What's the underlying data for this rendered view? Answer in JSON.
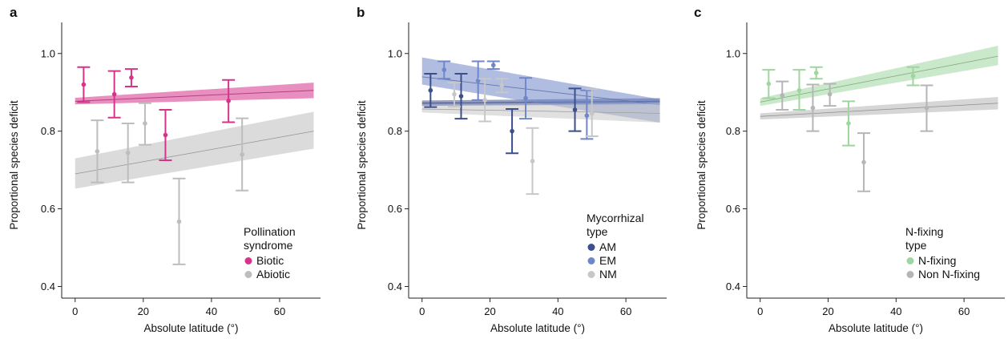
{
  "chart_data": [
    {
      "panel_label": "a",
      "type": "scatter",
      "xlabel": "Absolute latitude (°)",
      "ylabel": "Proportional species deficit",
      "xlim": [
        -3,
        72
      ],
      "ylim": [
        0.37,
        1.08
      ],
      "xticks": [
        0,
        20,
        40,
        60
      ],
      "yticks": [
        0.4,
        0.6,
        0.8,
        1.0
      ],
      "ytick_labels": [
        "0.4",
        "0.6",
        "0.8",
        "1.0"
      ],
      "xtick_labels": [
        "0",
        "20",
        "40",
        "60"
      ],
      "legend": {
        "title_lines": [
          "Pollination",
          "syndrome"
        ],
        "position": "lower-right"
      },
      "series": [
        {
          "name": "Biotic",
          "color": "#d6338a",
          "points": [
            {
              "x": 2.5,
              "y": 0.92,
              "lo": 0.875,
              "hi": 0.965
            },
            {
              "x": 11.5,
              "y": 0.895,
              "lo": 0.835,
              "hi": 0.955
            },
            {
              "x": 16.5,
              "y": 0.938,
              "lo": 0.915,
              "hi": 0.96
            },
            {
              "x": 26.5,
              "y": 0.79,
              "lo": 0.725,
              "hi": 0.855
            },
            {
              "x": 45,
              "y": 0.878,
              "lo": 0.823,
              "hi": 0.932
            }
          ],
          "trend": {
            "x": [
              0,
              70
            ],
            "y": [
              0.877,
              0.905
            ],
            "band_lo": [
              0.869,
              0.885
            ],
            "band_hi": [
              0.886,
              0.925
            ]
          }
        },
        {
          "name": "Abiotic",
          "color": "#bdbdbd",
          "points": [
            {
              "x": 6.5,
              "y": 0.748,
              "lo": 0.668,
              "hi": 0.828
            },
            {
              "x": 15.5,
              "y": 0.744,
              "lo": 0.668,
              "hi": 0.82
            },
            {
              "x": 20.5,
              "y": 0.82,
              "lo": 0.765,
              "hi": 0.872
            },
            {
              "x": 30.5,
              "y": 0.567,
              "lo": 0.457,
              "hi": 0.678
            },
            {
              "x": 49,
              "y": 0.74,
              "lo": 0.647,
              "hi": 0.833
            }
          ],
          "trend": {
            "x": [
              0,
              70
            ],
            "y": [
              0.69,
              0.8
            ],
            "band_lo": [
              0.652,
              0.755
            ],
            "band_hi": [
              0.73,
              0.85
            ]
          }
        }
      ]
    },
    {
      "panel_label": "b",
      "type": "scatter",
      "xlabel": "Absolute latitude (°)",
      "ylabel": "Proportional species deficit",
      "xlim": [
        -3,
        72
      ],
      "ylim": [
        0.37,
        1.08
      ],
      "xticks": [
        0,
        20,
        40,
        60
      ],
      "yticks": [
        0.4,
        0.6,
        0.8,
        1.0
      ],
      "ytick_labels": [
        "0.4",
        "0.6",
        "0.8",
        "1.0"
      ],
      "xtick_labels": [
        "0",
        "20",
        "40",
        "60"
      ],
      "legend": {
        "title_lines": [
          "Mycorrhizal",
          "type"
        ],
        "position": "lower-right"
      },
      "series": [
        {
          "name": "AM",
          "color": "#3b4f8f",
          "points": [
            {
              "x": 2.5,
              "y": 0.905,
              "lo": 0.862,
              "hi": 0.948
            },
            {
              "x": 11.5,
              "y": 0.89,
              "lo": 0.832,
              "hi": 0.948
            },
            {
              "x": 26.5,
              "y": 0.8,
              "lo": 0.743,
              "hi": 0.857
            },
            {
              "x": 45,
              "y": 0.855,
              "lo": 0.8,
              "hi": 0.91
            }
          ],
          "trend": {
            "x": [
              0,
              70
            ],
            "y": [
              0.872,
              0.877
            ],
            "band_lo": [
              0.865,
              0.869
            ],
            "band_hi": [
              0.879,
              0.885
            ]
          }
        },
        {
          "name": "EM",
          "color": "#6f87c9",
          "points": [
            {
              "x": 6.5,
              "y": 0.958,
              "lo": 0.935,
              "hi": 0.98
            },
            {
              "x": 16.5,
              "y": 0.93,
              "lo": 0.88,
              "hi": 0.98
            },
            {
              "x": 21,
              "y": 0.97,
              "lo": 0.96,
              "hi": 0.98
            },
            {
              "x": 30.5,
              "y": 0.885,
              "lo": 0.832,
              "hi": 0.937
            },
            {
              "x": 48.5,
              "y": 0.84,
              "lo": 0.78,
              "hi": 0.905
            }
          ],
          "trend": {
            "x": [
              0,
              70
            ],
            "y": [
              0.94,
              0.868
            ],
            "band_lo": [
              0.92,
              0.822
            ],
            "band_hi": [
              0.99,
              0.882
            ]
          }
        },
        {
          "name": "NM",
          "color": "#c7c7c7",
          "points": [
            {
              "x": 9.5,
              "y": 0.895,
              "lo": 0.863,
              "hi": 0.925
            },
            {
              "x": 18.5,
              "y": 0.88,
              "lo": 0.825,
              "hi": 0.935
            },
            {
              "x": 23.5,
              "y": 0.918,
              "lo": 0.9,
              "hi": 0.935
            },
            {
              "x": 32.5,
              "y": 0.723,
              "lo": 0.638,
              "hi": 0.808
            },
            {
              "x": 50,
              "y": 0.845,
              "lo": 0.787,
              "hi": 0.908
            }
          ],
          "trend": {
            "x": [
              0,
              70
            ],
            "y": [
              0.857,
              0.846
            ],
            "band_lo": [
              0.848,
              0.822
            ],
            "band_hi": [
              0.866,
              0.872
            ]
          }
        }
      ]
    },
    {
      "panel_label": "c",
      "type": "scatter",
      "xlabel": "Absolute latitude (°)",
      "ylabel": "Proportional species deficit",
      "xlim": [
        -3,
        72
      ],
      "ylim": [
        0.37,
        1.08
      ],
      "xticks": [
        0,
        20,
        40,
        60
      ],
      "yticks": [
        0.4,
        0.6,
        0.8,
        1.0
      ],
      "ytick_labels": [
        "0.4",
        "0.6",
        "0.8",
        "1.0"
      ],
      "xtick_labels": [
        "0",
        "20",
        "40",
        "60"
      ],
      "legend": {
        "title_lines": [
          "N-fixing",
          "type"
        ],
        "position": "lower-right"
      },
      "series": [
        {
          "name": "N-fixing",
          "color": "#9fd69f",
          "points": [
            {
              "x": 2.5,
              "y": 0.922,
              "lo": 0.885,
              "hi": 0.958
            },
            {
              "x": 11.5,
              "y": 0.905,
              "lo": 0.855,
              "hi": 0.958
            },
            {
              "x": 16.5,
              "y": 0.95,
              "lo": 0.935,
              "hi": 0.965
            },
            {
              "x": 26,
              "y": 0.82,
              "lo": 0.763,
              "hi": 0.877
            },
            {
              "x": 45,
              "y": 0.942,
              "lo": 0.918,
              "hi": 0.965
            }
          ],
          "trend": {
            "x": [
              0,
              70
            ],
            "y": [
              0.875,
              0.993
            ],
            "band_lo": [
              0.865,
              0.97
            ],
            "band_hi": [
              0.885,
              1.02
            ]
          }
        },
        {
          "name": "Non N-fixing",
          "color": "#b5b5b5",
          "points": [
            {
              "x": 6.5,
              "y": 0.892,
              "lo": 0.855,
              "hi": 0.928
            },
            {
              "x": 15.5,
              "y": 0.86,
              "lo": 0.8,
              "hi": 0.92
            },
            {
              "x": 20.5,
              "y": 0.895,
              "lo": 0.865,
              "hi": 0.922
            },
            {
              "x": 30.5,
              "y": 0.72,
              "lo": 0.645,
              "hi": 0.795
            },
            {
              "x": 49,
              "y": 0.86,
              "lo": 0.8,
              "hi": 0.918
            }
          ],
          "trend": {
            "x": [
              0,
              70
            ],
            "y": [
              0.838,
              0.872
            ],
            "band_lo": [
              0.83,
              0.856
            ],
            "band_hi": [
              0.846,
              0.888
            ]
          }
        }
      ]
    }
  ]
}
